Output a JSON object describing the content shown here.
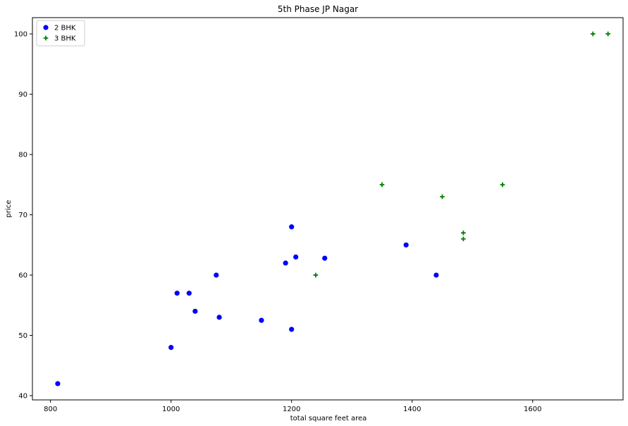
{
  "chart_data": {
    "type": "scatter",
    "title": "5th Phase JP Nagar",
    "xlabel": "total square feet area",
    "ylabel": "price",
    "xlim": [
      770,
      1750
    ],
    "ylim": [
      39.3,
      102.7
    ],
    "xticks": [
      800,
      1000,
      1200,
      1400,
      1600
    ],
    "yticks": [
      40,
      50,
      60,
      70,
      80,
      90,
      100
    ],
    "grid": false,
    "legend_position": "top-left",
    "series": [
      {
        "name": "2 BHK",
        "marker": "circle",
        "color": "#0000ff",
        "points": [
          {
            "x": 812,
            "y": 42
          },
          {
            "x": 1000,
            "y": 48
          },
          {
            "x": 1010,
            "y": 57
          },
          {
            "x": 1030,
            "y": 57
          },
          {
            "x": 1040,
            "y": 54
          },
          {
            "x": 1075,
            "y": 60
          },
          {
            "x": 1080,
            "y": 53
          },
          {
            "x": 1150,
            "y": 52.5
          },
          {
            "x": 1190,
            "y": 62
          },
          {
            "x": 1200,
            "y": 68
          },
          {
            "x": 1200,
            "y": 51
          },
          {
            "x": 1207,
            "y": 63
          },
          {
            "x": 1255,
            "y": 62.8
          },
          {
            "x": 1390,
            "y": 65
          },
          {
            "x": 1440,
            "y": 60
          }
        ]
      },
      {
        "name": "3 BHK",
        "marker": "plus",
        "color": "#008000",
        "points": [
          {
            "x": 1240,
            "y": 60
          },
          {
            "x": 1350,
            "y": 75
          },
          {
            "x": 1450,
            "y": 73
          },
          {
            "x": 1485,
            "y": 67
          },
          {
            "x": 1485,
            "y": 66
          },
          {
            "x": 1550,
            "y": 75
          },
          {
            "x": 1700,
            "y": 100
          },
          {
            "x": 1725,
            "y": 100
          }
        ]
      }
    ]
  }
}
